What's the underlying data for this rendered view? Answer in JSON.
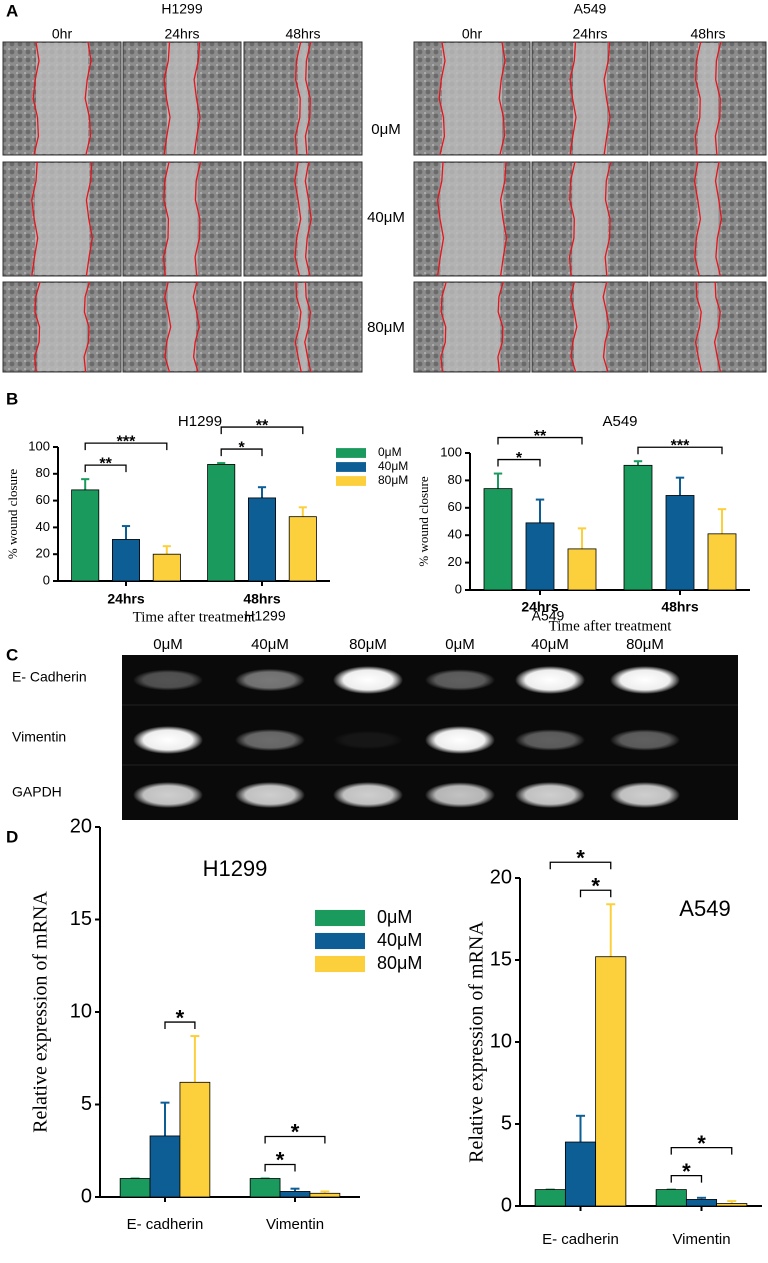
{
  "panel_labels": [
    "A",
    "B",
    "C",
    "D"
  ],
  "panel_a": {
    "groups": [
      {
        "title": "H1299",
        "columns": [
          "0hr",
          "24hrs",
          "48hrs"
        ]
      },
      {
        "title": "A549",
        "columns": [
          "0hr",
          "24hrs",
          "48hrs"
        ]
      }
    ],
    "rows": [
      "0μM",
      "40μM",
      "80μM"
    ]
  },
  "panel_c": {
    "groups": [
      "H1299",
      "A549"
    ],
    "lanes": [
      "0μM",
      "40μM",
      "80μM",
      "0μM",
      "40μM",
      "80μM"
    ],
    "rows": [
      "E- Cadherin",
      "Vimentin",
      "GAPDH"
    ]
  },
  "chart_data": [
    {
      "type": "bar",
      "title": "H1299",
      "title_color": "#cc0000",
      "y_label": "% wound closure",
      "x_label": "Time after treatment",
      "categories": [
        "24hrs",
        "48hrs"
      ],
      "series": [
        {
          "name": "0μM",
          "color": "#1a9a5c",
          "values": [
            68,
            87
          ],
          "errors": [
            8,
            1
          ]
        },
        {
          "name": "40μM",
          "color": "#0e5e96",
          "values": [
            31,
            62
          ],
          "errors": [
            10,
            8
          ]
        },
        {
          "name": "80μM",
          "color": "#fcd03c",
          "values": [
            20,
            48
          ],
          "errors": [
            6,
            7
          ]
        }
      ],
      "ylim": [
        0,
        100
      ],
      "yticks": [
        0,
        20,
        40,
        60,
        80,
        100
      ],
      "legend": "upper right",
      "annotations": [
        {
          "text": "**",
          "category": 0,
          "pair": [
            0,
            1
          ]
        },
        {
          "text": "***",
          "category": 0,
          "pair": [
            0,
            2
          ]
        },
        {
          "text": "*",
          "category": 1,
          "pair": [
            0,
            1
          ]
        },
        {
          "text": "**",
          "category": 1,
          "pair": [
            0,
            2
          ]
        }
      ]
    },
    {
      "type": "bar",
      "title": "A549",
      "title_color": "#cc0000",
      "y_label": "% wound closure",
      "x_label": "Time after treatment",
      "categories": [
        "24hrs",
        "48hrs"
      ],
      "series": [
        {
          "name": "0μM",
          "color": "#1a9a5c",
          "values": [
            74,
            91
          ],
          "errors": [
            11,
            3
          ]
        },
        {
          "name": "40μM",
          "color": "#0e5e96",
          "values": [
            49,
            69
          ],
          "errors": [
            17,
            13
          ]
        },
        {
          "name": "80μM",
          "color": "#fcd03c",
          "values": [
            30,
            41
          ],
          "errors": [
            15,
            18
          ]
        }
      ],
      "ylim": [
        0,
        100
      ],
      "yticks": [
        0,
        20,
        40,
        60,
        80,
        100
      ],
      "legend": false,
      "annotations": [
        {
          "text": "*",
          "category": 0,
          "pair": [
            0,
            1
          ]
        },
        {
          "text": "**",
          "category": 0,
          "pair": [
            0,
            2
          ]
        },
        {
          "text": "***",
          "category": 1,
          "pair": [
            0,
            2
          ]
        }
      ]
    },
    {
      "type": "bar",
      "title": "H1299",
      "y_label": "Relative expression of mRNA",
      "categories": [
        "E- cadherin",
        "Vimentin"
      ],
      "series": [
        {
          "name": "0μM",
          "color": "#1a9a5c",
          "values": [
            1,
            1
          ],
          "errors": [
            0,
            0
          ]
        },
        {
          "name": "40μM",
          "color": "#0e5e96",
          "values": [
            3.3,
            0.3
          ],
          "errors": [
            1.8,
            0.15
          ]
        },
        {
          "name": "80μM",
          "color": "#fcd03c",
          "values": [
            6.2,
            0.2
          ],
          "errors": [
            2.5,
            0.1
          ]
        }
      ],
      "ylim": [
        0,
        20
      ],
      "yticks": [
        0,
        5,
        10,
        15,
        20
      ],
      "legend": "upper right",
      "annotations": [
        {
          "text": "*",
          "category": 0,
          "pair": [
            1,
            2
          ]
        },
        {
          "text": "*",
          "category": 1,
          "pair": [
            0,
            1
          ]
        },
        {
          "text": "*",
          "category": 1,
          "pair": [
            0,
            2
          ]
        }
      ]
    },
    {
      "type": "bar",
      "title": "A549",
      "y_label": "Relative expression of mRNA",
      "categories": [
        "E- cadherin",
        "Vimentin"
      ],
      "series": [
        {
          "name": "0μM",
          "color": "#1a9a5c",
          "values": [
            1,
            1
          ],
          "errors": [
            0,
            0
          ]
        },
        {
          "name": "40μM",
          "color": "#0e5e96",
          "values": [
            3.9,
            0.4
          ],
          "errors": [
            1.6,
            0.1
          ]
        },
        {
          "name": "80μM",
          "color": "#fcd03c",
          "values": [
            15.2,
            0.15
          ],
          "errors": [
            3.2,
            0.15
          ]
        }
      ],
      "ylim": [
        0,
        20
      ],
      "yticks": [
        0,
        5,
        10,
        15,
        20
      ],
      "legend": false,
      "annotations": [
        {
          "text": "*",
          "category": 0,
          "pair": [
            1,
            2
          ]
        },
        {
          "text": "*",
          "category": 0,
          "pair": [
            0,
            2
          ]
        },
        {
          "text": "*",
          "category": 1,
          "pair": [
            0,
            1
          ]
        },
        {
          "text": "*",
          "category": 1,
          "pair": [
            0,
            2
          ]
        }
      ]
    }
  ]
}
